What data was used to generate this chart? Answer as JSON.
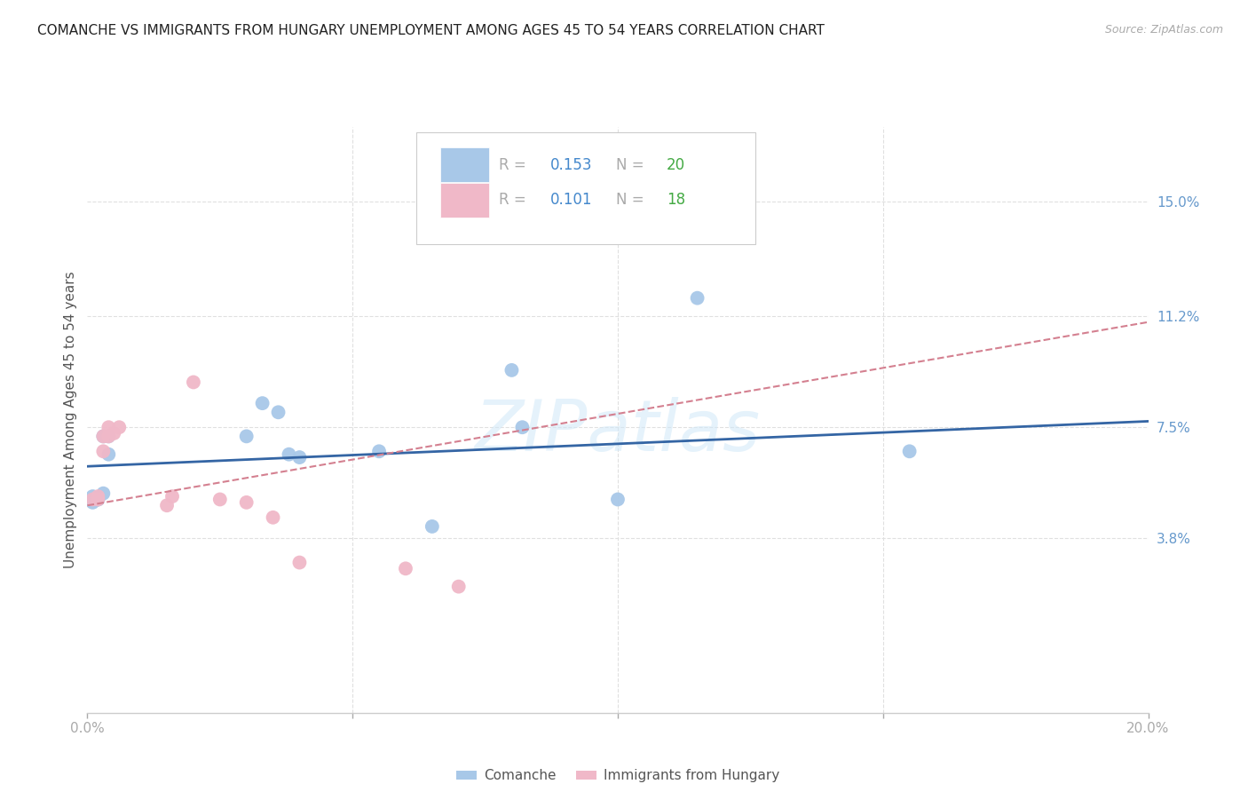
{
  "title": "COMANCHE VS IMMIGRANTS FROM HUNGARY UNEMPLOYMENT AMONG AGES 45 TO 54 YEARS CORRELATION CHART",
  "source": "Source: ZipAtlas.com",
  "ylabel": "Unemployment Among Ages 45 to 54 years",
  "xlim": [
    0.0,
    0.2
  ],
  "ylim": [
    -0.02,
    0.175
  ],
  "ytick_labels_right": [
    "15.0%",
    "11.2%",
    "7.5%",
    "3.8%"
  ],
  "ytick_vals_right": [
    0.15,
    0.112,
    0.075,
    0.038
  ],
  "background_color": "#ffffff",
  "grid_color": "#e0e0e0",
  "watermark": "ZIPatlas",
  "comanche_color": "#a8c8e8",
  "hungary_color": "#f0b8c8",
  "comanche_line_color": "#3465a4",
  "hungary_line_color": "#d48090",
  "comanche_R": 0.153,
  "comanche_N": 20,
  "hungary_R": 0.101,
  "hungary_N": 18,
  "comanche_points": [
    [
      0.001,
      0.05
    ],
    [
      0.001,
      0.052
    ],
    [
      0.002,
      0.051
    ],
    [
      0.002,
      0.051
    ],
    [
      0.003,
      0.053
    ],
    [
      0.003,
      0.072
    ],
    [
      0.004,
      0.072
    ],
    [
      0.004,
      0.066
    ],
    [
      0.03,
      0.072
    ],
    [
      0.033,
      0.083
    ],
    [
      0.036,
      0.08
    ],
    [
      0.038,
      0.066
    ],
    [
      0.04,
      0.065
    ],
    [
      0.055,
      0.067
    ],
    [
      0.065,
      0.042
    ],
    [
      0.08,
      0.094
    ],
    [
      0.082,
      0.075
    ],
    [
      0.1,
      0.051
    ],
    [
      0.115,
      0.118
    ],
    [
      0.155,
      0.067
    ]
  ],
  "hungary_points": [
    [
      0.001,
      0.051
    ],
    [
      0.002,
      0.051
    ],
    [
      0.002,
      0.052
    ],
    [
      0.003,
      0.067
    ],
    [
      0.003,
      0.072
    ],
    [
      0.004,
      0.072
    ],
    [
      0.004,
      0.075
    ],
    [
      0.005,
      0.073
    ],
    [
      0.006,
      0.075
    ],
    [
      0.015,
      0.049
    ],
    [
      0.016,
      0.052
    ],
    [
      0.02,
      0.09
    ],
    [
      0.025,
      0.051
    ],
    [
      0.03,
      0.05
    ],
    [
      0.035,
      0.045
    ],
    [
      0.04,
      0.03
    ],
    [
      0.06,
      0.028
    ],
    [
      0.07,
      0.022
    ]
  ],
  "comanche_trend_x": [
    0.0,
    0.2
  ],
  "comanche_trend_y": [
    0.062,
    0.077
  ],
  "hungary_trend_x": [
    0.0,
    0.2
  ],
  "hungary_trend_y": [
    0.049,
    0.11
  ]
}
